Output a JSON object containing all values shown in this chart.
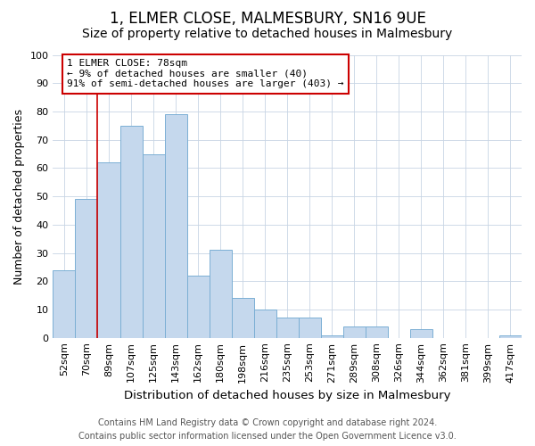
{
  "title": "1, ELMER CLOSE, MALMESBURY, SN16 9UE",
  "subtitle": "Size of property relative to detached houses in Malmesbury",
  "xlabel": "Distribution of detached houses by size in Malmesbury",
  "ylabel": "Number of detached properties",
  "categories": [
    "52sqm",
    "70sqm",
    "89sqm",
    "107sqm",
    "125sqm",
    "143sqm",
    "162sqm",
    "180sqm",
    "198sqm",
    "216sqm",
    "235sqm",
    "253sqm",
    "271sqm",
    "289sqm",
    "308sqm",
    "326sqm",
    "344sqm",
    "362sqm",
    "381sqm",
    "399sqm",
    "417sqm"
  ],
  "values": [
    24,
    49,
    62,
    75,
    65,
    79,
    22,
    31,
    14,
    10,
    7,
    7,
    1,
    4,
    4,
    0,
    3,
    0,
    0,
    0,
    1
  ],
  "bar_color": "#c5d8ed",
  "bar_edge_color": "#7bafd4",
  "ylim": [
    0,
    100
  ],
  "yticks": [
    0,
    10,
    20,
    30,
    40,
    50,
    60,
    70,
    80,
    90,
    100
  ],
  "vline_x": 1.5,
  "vline_color": "#cc0000",
  "annotation_line1": "1 ELMER CLOSE: 78sqm",
  "annotation_line2": "← 9% of detached houses are smaller (40)",
  "annotation_line3": "91% of semi-detached houses are larger (403) →",
  "annotation_box_color": "#ffffff",
  "annotation_box_edge_color": "#cc0000",
  "footer_line1": "Contains HM Land Registry data © Crown copyright and database right 2024.",
  "footer_line2": "Contains public sector information licensed under the Open Government Licence v3.0.",
  "background_color": "#ffffff",
  "grid_color": "#c8d4e4",
  "title_fontsize": 12,
  "subtitle_fontsize": 10,
  "xlabel_fontsize": 9.5,
  "ylabel_fontsize": 9,
  "tick_fontsize": 8,
  "annotation_fontsize": 8,
  "footer_fontsize": 7
}
